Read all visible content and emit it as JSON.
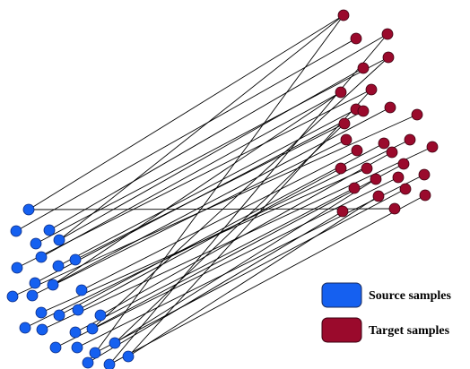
{
  "colors": {
    "source": "#1560f0",
    "target": "#9a0a2c",
    "edge": "#000000"
  },
  "legend": [
    {
      "key": "source",
      "label": "Source samples"
    },
    {
      "key": "target",
      "label": "Target samples"
    }
  ]
}
